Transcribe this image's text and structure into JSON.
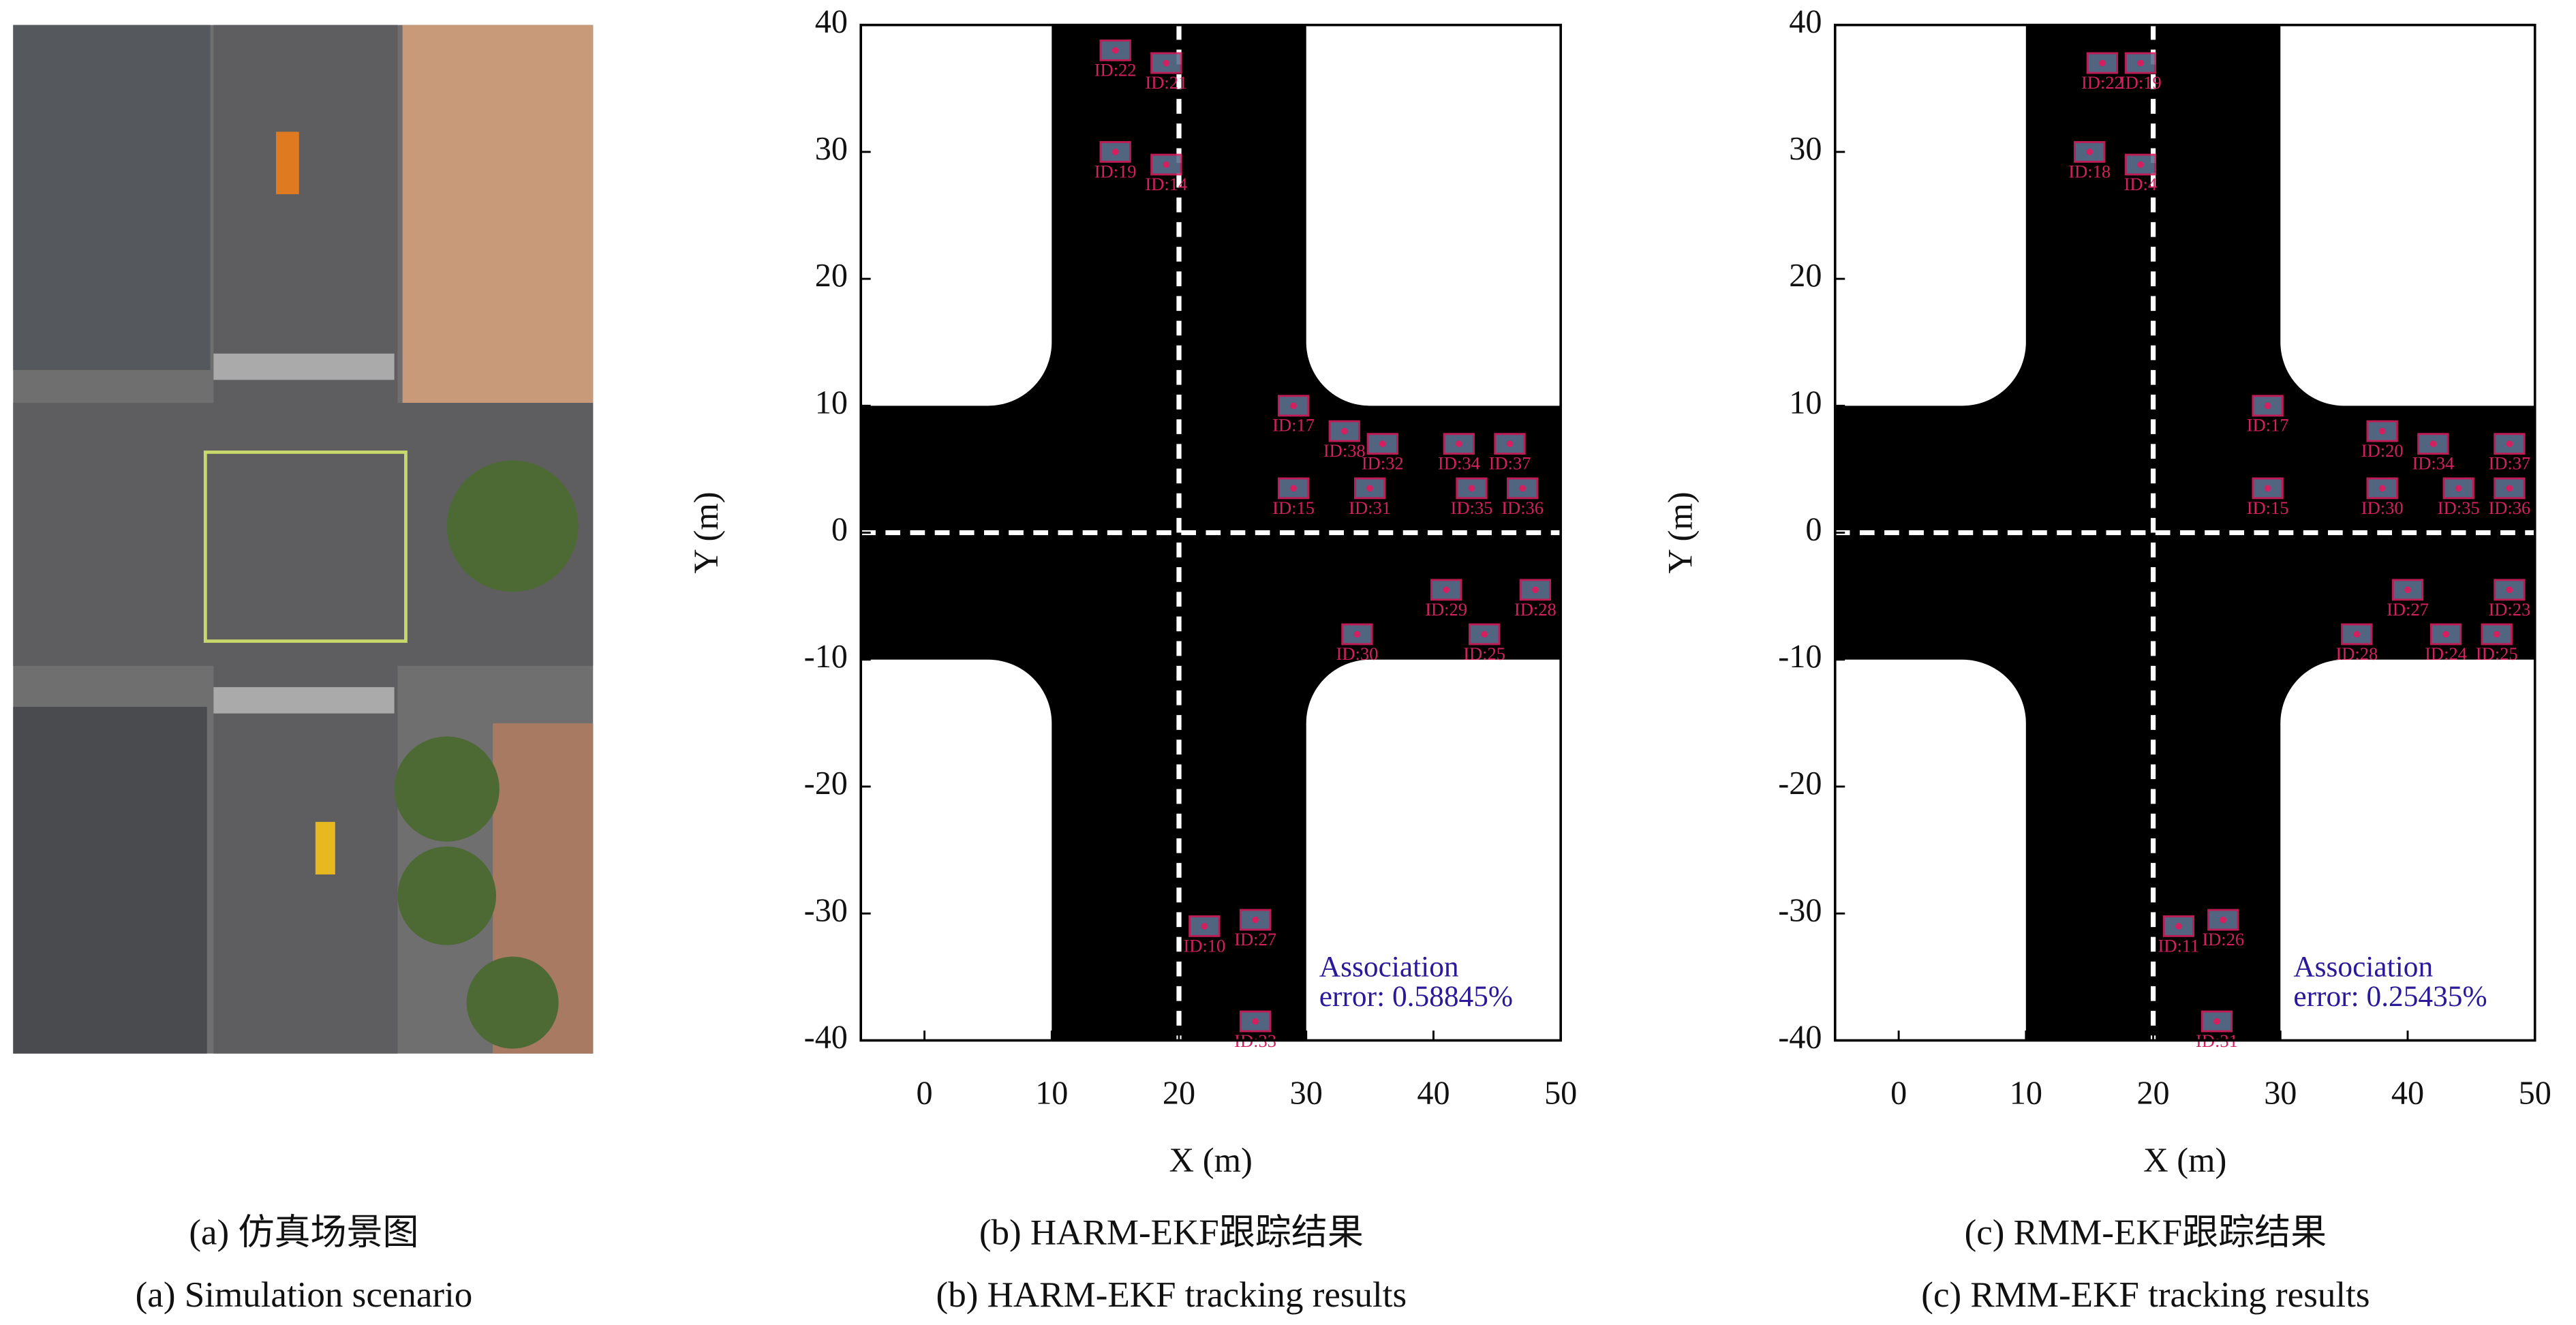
{
  "chart_data": [
    {
      "type": "scatter",
      "xlabel": "X (m)",
      "ylabel": "Y (m)",
      "xlim": [
        -5,
        50
      ],
      "ylim": [
        -40,
        40
      ],
      "xticks": [
        0,
        10,
        20,
        30,
        40,
        50
      ],
      "yticks": [
        -40,
        -30,
        -20,
        -10,
        0,
        10,
        20,
        30,
        40
      ],
      "color": "#d42060",
      "box_color": "#5a6f8e",
      "annotation_color": "#2a1a9a",
      "point_labels": [
        "ID:22",
        "ID:21",
        "ID:19",
        "ID:14",
        "ID:17",
        "ID:38",
        "ID:32",
        "ID:34",
        "ID:37",
        "ID:15",
        "ID:31",
        "ID:35",
        "ID:36",
        "ID:29",
        "ID:28",
        "ID:30",
        "ID:25",
        "ID:10",
        "ID:27",
        "ID:33"
      ],
      "x": [
        15,
        19,
        15,
        19,
        29,
        33,
        36,
        42,
        46,
        29,
        35,
        43,
        47,
        41,
        48,
        34,
        44,
        22,
        26,
        26
      ],
      "values": [
        38,
        37,
        30,
        29,
        10,
        8,
        7,
        7,
        7,
        3.5,
        3.5,
        3.5,
        3.5,
        -4.5,
        -4.5,
        -8,
        -8,
        -31,
        -30.5,
        -38.5
      ],
      "annotation": [
        "Association",
        "error: 0.58845%"
      ],
      "caption_cn": "(b) HARM-EKF跟踪结果",
      "caption_en": "(b) HARM-EKF tracking results"
    },
    {
      "type": "scatter",
      "xlabel": "X (m)",
      "ylabel": "Y (m)",
      "xlim": [
        -5,
        50
      ],
      "ylim": [
        -40,
        40
      ],
      "xticks": [
        0,
        10,
        20,
        30,
        40,
        50
      ],
      "yticks": [
        -40,
        -30,
        -20,
        -10,
        0,
        10,
        20,
        30,
        40
      ],
      "color": "#d42060",
      "box_color": "#5a6f8e",
      "annotation_color": "#2a1a9a",
      "point_labels": [
        "ID:22",
        "ID:19",
        "ID:18",
        "ID:4",
        "ID:17",
        "ID:20",
        "ID:34",
        "ID:37",
        "ID:15",
        "ID:30",
        "ID:35",
        "ID:36",
        "ID:27",
        "ID:23",
        "ID:28",
        "ID:24",
        "ID:25",
        "ID:11",
        "ID:26",
        "ID:31"
      ],
      "x": [
        16,
        19,
        15,
        19,
        29,
        38,
        42,
        48,
        29,
        38,
        44,
        48,
        40,
        48,
        36,
        43,
        47,
        22,
        25.5,
        25
      ],
      "values": [
        37,
        37,
        30,
        29,
        10,
        8,
        7,
        7,
        3.5,
        3.5,
        3.5,
        3.5,
        -4.5,
        -4.5,
        -8,
        -8,
        -8,
        -31,
        -30.5,
        -38.5
      ],
      "annotation": [
        "Association",
        "error: 0.25435%"
      ],
      "caption_cn": "(c) RMM-EKF跟踪结果",
      "caption_en": "(c) RMM-EKF tracking results"
    }
  ],
  "panel_a": {
    "caption_cn": "(a) 仿真场景图",
    "caption_en": "(a) Simulation scenario"
  }
}
